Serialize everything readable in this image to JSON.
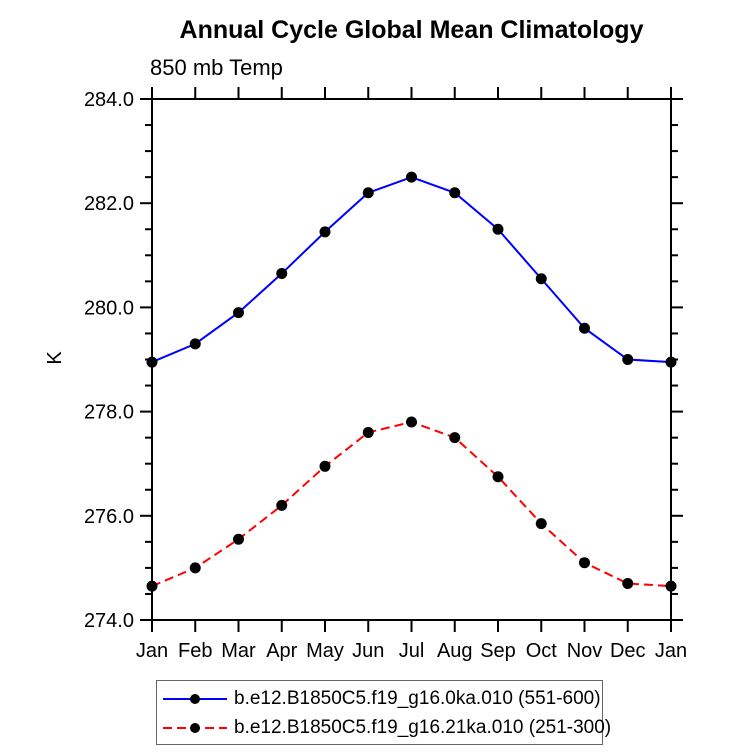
{
  "title": "Annual Cycle Global Mean Climatology",
  "chart_data": {
    "type": "line",
    "title": "Annual Cycle Global Mean Climatology",
    "subtitle": "850 mb Temp",
    "xlabel": "",
    "ylabel": "K",
    "categories": [
      "Jan",
      "Feb",
      "Mar",
      "Apr",
      "May",
      "Jun",
      "Jul",
      "Aug",
      "Sep",
      "Oct",
      "Nov",
      "Dec",
      "Jan"
    ],
    "series": [
      {
        "name": "b.e12.B1850C5.f19_g16.0ka.010 (551-600)",
        "color": "#0000ff",
        "line_style": "solid",
        "marker": "filled-circle",
        "marker_color": "#000000",
        "values": [
          278.95,
          279.3,
          279.9,
          280.65,
          281.45,
          282.2,
          282.5,
          282.2,
          281.5,
          280.55,
          279.6,
          279.0,
          278.95
        ]
      },
      {
        "name": "b.e12.B1850C5.f19_g16.21ka.010 (251-300)",
        "color": "#ff0000",
        "line_style": "dashed",
        "marker": "filled-circle",
        "marker_color": "#000000",
        "values": [
          274.65,
          275.0,
          275.55,
          276.2,
          276.95,
          277.6,
          277.8,
          277.5,
          276.75,
          275.85,
          275.1,
          274.7,
          274.65
        ]
      }
    ],
    "ylim": [
      274.0,
      284.0
    ],
    "ytick_major_step": 2.0,
    "ytick_minor_step": 0.5,
    "ytick_labels": [
      "284.0",
      "282.0",
      "280.0",
      "278.0",
      "276.0",
      "274.0"
    ],
    "grid": false,
    "legend_position": "bottom",
    "axis_color": "#000000"
  }
}
